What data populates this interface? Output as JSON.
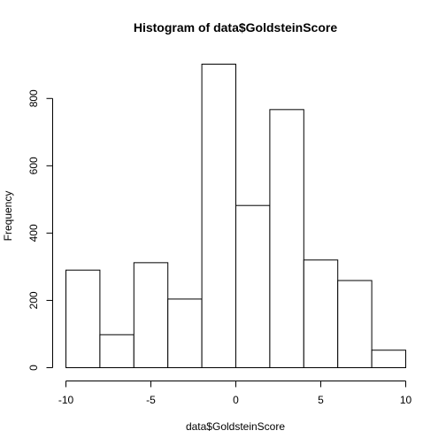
{
  "chart_data": {
    "type": "bar",
    "title": "Histogram of data$GoldsteinScore",
    "xlabel": "data$GoldsteinScore",
    "ylabel": "Frequency",
    "bins": [
      {
        "start": -10,
        "end": -8,
        "count": 290
      },
      {
        "start": -8,
        "end": -6,
        "count": 98
      },
      {
        "start": -6,
        "end": -4,
        "count": 312
      },
      {
        "start": -4,
        "end": -2,
        "count": 204
      },
      {
        "start": -2,
        "end": 0,
        "count": 902
      },
      {
        "start": 0,
        "end": 2,
        "count": 482
      },
      {
        "start": 2,
        "end": 4,
        "count": 767
      },
      {
        "start": 4,
        "end": 6,
        "count": 320
      },
      {
        "start": 6,
        "end": 8,
        "count": 259
      },
      {
        "start": 8,
        "end": 10,
        "count": 52
      }
    ],
    "xlim": [
      -10,
      10
    ],
    "ylim": [
      0,
      902
    ],
    "xticks": [
      -10,
      -5,
      0,
      5,
      10
    ],
    "yticks": [
      0,
      200,
      400,
      600,
      800
    ],
    "grid": false,
    "legend": "none"
  }
}
